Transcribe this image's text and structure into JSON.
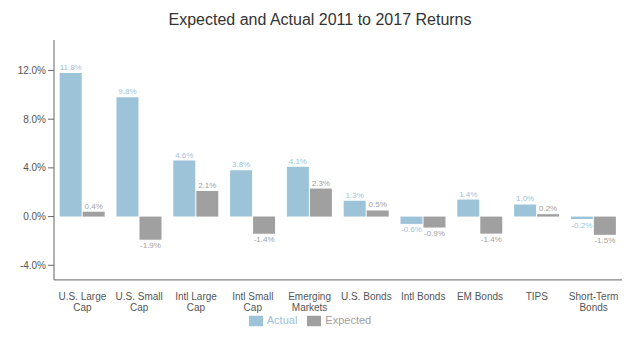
{
  "chart_data": {
    "type": "bar",
    "title": "Expected and Actual 2011 to 2017 Returns",
    "categories": [
      "U.S. Large\nCap",
      "U.S. Small\nCap",
      "Intl Large\nCap",
      "Intl Small\nCap",
      "Emerging\nMarkets",
      "U.S. Bonds",
      "Intl Bonds",
      "EM Bonds",
      "TIPS",
      "Short-Term\nBonds"
    ],
    "series": [
      {
        "name": "Actual",
        "color": "#9DC3D9",
        "values": [
          11.8,
          9.8,
          4.6,
          3.8,
          4.1,
          1.3,
          -0.6,
          1.4,
          1.0,
          -0.2
        ],
        "value_labels": [
          "11.8%",
          "9.8%",
          "4.6%",
          "3.8%",
          "4.1%",
          "1.3%",
          "-0.6%",
          "1.4%",
          "1.0%",
          "-0.2%"
        ]
      },
      {
        "name": "Expected",
        "color": "#A0A0A0",
        "values": [
          0.4,
          -1.9,
          2.1,
          -1.4,
          2.3,
          0.5,
          -0.9,
          -1.4,
          0.2,
          -1.5
        ],
        "value_labels": [
          "0.4%",
          "-1.9%",
          "2.1%",
          "-1.4%",
          "2.3%",
          "0.5%",
          "-0.9%",
          "-1.4%",
          "0.2%",
          "-1.5%"
        ]
      }
    ],
    "ylim": [
      -5.2,
      14.5
    ],
    "yticks": [
      {
        "value": -4.0,
        "label": "-4.0%"
      },
      {
        "value": 0.0,
        "label": "0.0%"
      },
      {
        "value": 4.0,
        "label": "4.0%"
      },
      {
        "value": 8.0,
        "label": "8.0%"
      },
      {
        "value": 12.0,
        "label": "12.0%"
      }
    ],
    "grid": false,
    "legend": "bottom",
    "data_labels": true
  }
}
